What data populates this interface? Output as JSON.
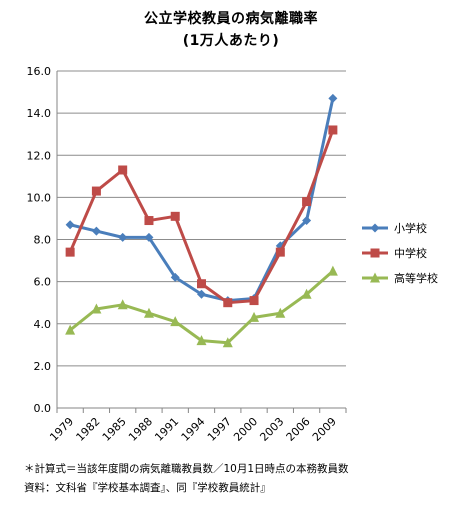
{
  "chart_data": {
    "type": "line",
    "title": "公立学校教員の病気離職率",
    "subtitle": "(1万人あたり)",
    "xlabel": "",
    "ylabel": "",
    "categories": [
      "1979",
      "1982",
      "1985",
      "1988",
      "1991",
      "1994",
      "1997",
      "2000",
      "2003",
      "2006",
      "2009"
    ],
    "ylim": [
      0,
      16
    ],
    "yticks": [
      "0.0",
      "2.0",
      "4.0",
      "6.0",
      "8.0",
      "10.0",
      "12.0",
      "14.0",
      "16.0"
    ],
    "grid": true,
    "legend_position": "right",
    "series": [
      {
        "name": "小学校",
        "color": "#4a7ebb",
        "marker": "diamond",
        "values": [
          8.7,
          8.4,
          8.1,
          8.1,
          6.2,
          5.4,
          5.1,
          5.2,
          7.7,
          8.9,
          14.7
        ]
      },
      {
        "name": "中学校",
        "color": "#be4b48",
        "marker": "square",
        "values": [
          7.4,
          10.3,
          11.3,
          8.9,
          9.1,
          5.9,
          5.0,
          5.1,
          7.4,
          9.8,
          13.2
        ]
      },
      {
        "name": "高等学校",
        "color": "#98b954",
        "marker": "triangle",
        "values": [
          3.7,
          4.7,
          4.9,
          4.5,
          4.1,
          3.2,
          3.1,
          4.3,
          4.5,
          5.4,
          6.5
        ]
      }
    ]
  },
  "footnotes": {
    "note": "＊計算式＝当該年度間の病気離職教員数／10月1日時点の本務教員数",
    "source": "資料：文科省『学校基本調査』、同『学校教員統計』"
  }
}
